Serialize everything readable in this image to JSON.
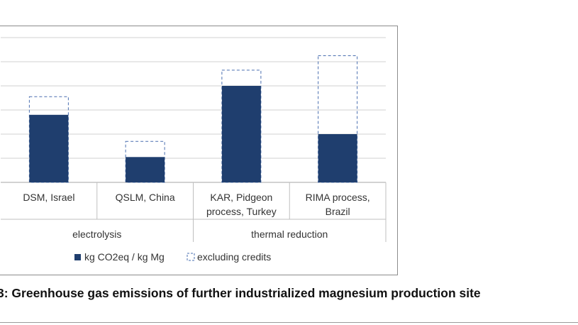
{
  "caption": "3: Greenhouse gas emissions of further industrialized magnesium production site",
  "chart_data": {
    "type": "bar",
    "categories": [
      "DSM, Israel",
      "QSLM, China",
      "KAR, Pidgeon process, Turkey",
      "RIMA process, Brazil"
    ],
    "category_label_lines": [
      [
        "DSM, Israel"
      ],
      [
        "QSLM, China"
      ],
      [
        "KAR, Pidgeon",
        "process, Turkey"
      ],
      [
        "RIMA process,",
        "Brazil"
      ]
    ],
    "groups": [
      {
        "label": "electrolysis",
        "categories": [
          "DSM, Israel",
          "QSLM, China"
        ]
      },
      {
        "label": "thermal reduction",
        "categories": [
          "KAR, Pidgeon process, Turkey",
          "RIMA process, Brazil"
        ]
      }
    ],
    "series": [
      {
        "name": "kg CO2eq / kg Mg",
        "values": [
          28,
          10.5,
          40,
          20
        ],
        "color": "#1f3e6e",
        "style": "filled"
      },
      {
        "name": "excluding credits",
        "values": [
          35.5,
          17,
          46.5,
          52.5
        ],
        "color": "#4a6fb0",
        "style": "dashed-outline"
      }
    ],
    "ylim": [
      0,
      60
    ],
    "y_gridlines": [
      0,
      10,
      20,
      30,
      40,
      50,
      60
    ],
    "grid": true,
    "legend_position": "bottom"
  }
}
